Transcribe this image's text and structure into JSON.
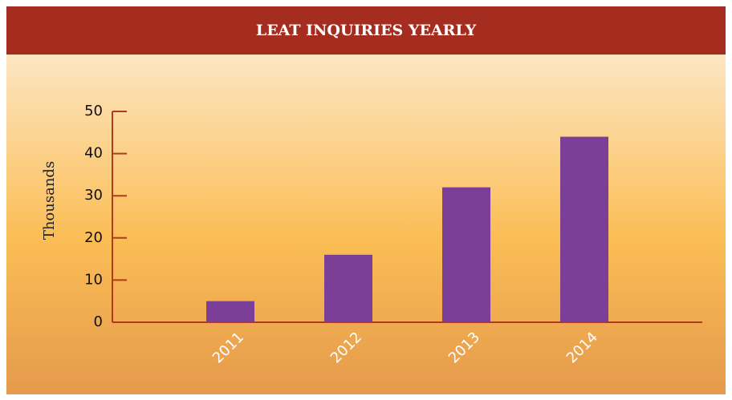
{
  "chart_data": {
    "type": "bar",
    "title": "LEAT INQUIRIES YEARLY",
    "y_label": "Thousands",
    "categories": [
      "2011",
      "2012",
      "2013",
      "2014"
    ],
    "values": [
      5,
      16,
      32,
      44
    ],
    "color": "#7b3f98",
    "ylim": [
      0,
      50
    ],
    "yticks": [
      0,
      10,
      20,
      30,
      40,
      50
    ],
    "grid": false
  }
}
